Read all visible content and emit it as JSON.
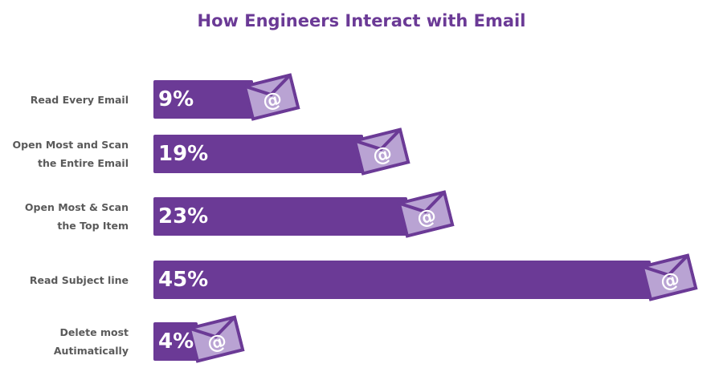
{
  "chart_data": {
    "type": "bar",
    "orientation": "horizontal",
    "title": "How Engineers Interact with Email",
    "categories": [
      "Read Every Email",
      "Open Most and Scan the Entire Email",
      "Open Most & Scan the Top Item",
      "Read Subject line",
      "Delete most Autimatically"
    ],
    "category_lines": [
      [
        "Read Every Email"
      ],
      [
        "Open Most and Scan",
        "the Entire Email"
      ],
      [
        "Open Most & Scan",
        "the Top Item"
      ],
      [
        "Read Subject line"
      ],
      [
        "Delete most",
        "Autimatically"
      ]
    ],
    "values": [
      9,
      19,
      23,
      45,
      4
    ],
    "value_labels": [
      "9%",
      "19%",
      "23%",
      "45%",
      "4%"
    ],
    "unit": "%",
    "grid": false,
    "colors": {
      "bar": "#6b3a96",
      "envelope_fill": "#b9a3d3",
      "title": "#6b3a96",
      "label": "#5a5a5a"
    },
    "icon": "envelope-at-icon"
  }
}
